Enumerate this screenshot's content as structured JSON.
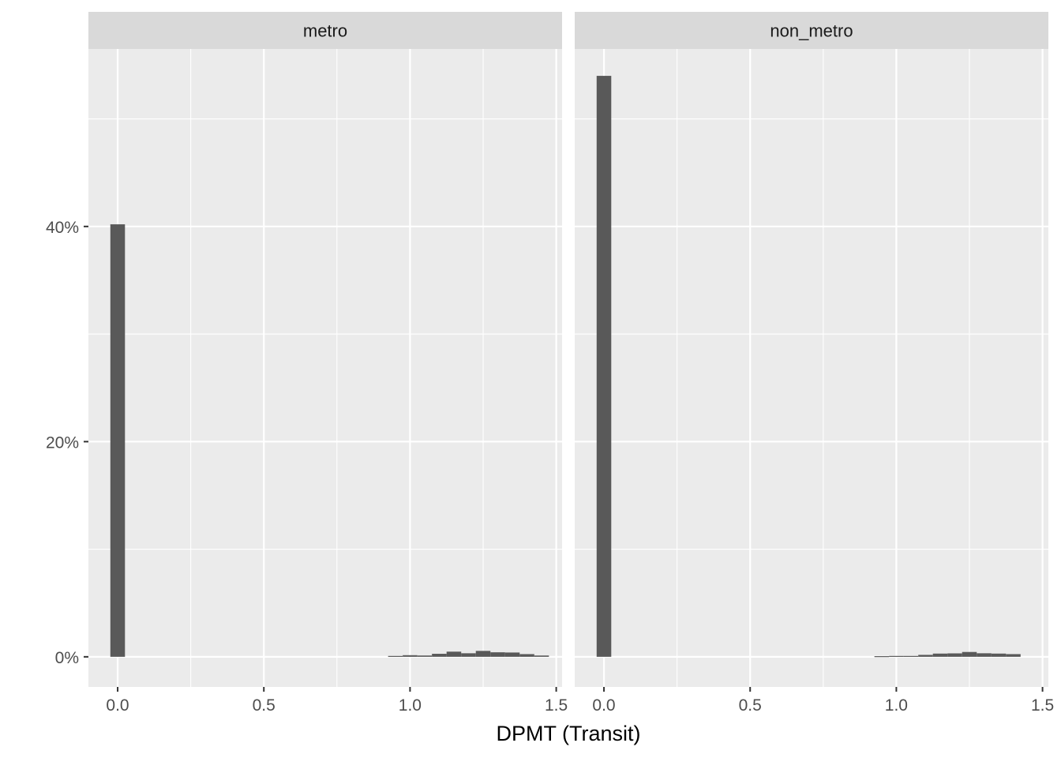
{
  "chart_data": {
    "type": "bar",
    "subtype": "faceted-histogram",
    "xlabel": "DPMT (Transit)",
    "ylabel": "",
    "xlim": [
      -0.1,
      1.52
    ],
    "ylim": [
      -0.028,
      0.565
    ],
    "x_ticks": [
      0.0,
      0.5,
      1.0,
      1.5
    ],
    "x_tick_labels": [
      "0.0",
      "0.5",
      "1.0",
      "1.5"
    ],
    "y_ticks": [
      0.0,
      0.2,
      0.4
    ],
    "y_tick_labels": [
      "0%",
      "20%",
      "40%"
    ],
    "y_format": "percent",
    "bin_width": 0.05,
    "grid": true,
    "colors": {
      "bar": "#595959",
      "panel_bg": "#ebebeb",
      "strip_bg": "#d9d9d9",
      "grid": "#ffffff"
    },
    "facets": [
      {
        "label": "metro",
        "bins": [
          {
            "x": 0.0,
            "value": 0.402
          },
          {
            "x": 0.95,
            "value": 0.0008
          },
          {
            "x": 1.0,
            "value": 0.0015
          },
          {
            "x": 1.05,
            "value": 0.0012
          },
          {
            "x": 1.1,
            "value": 0.0028
          },
          {
            "x": 1.15,
            "value": 0.0048
          },
          {
            "x": 1.2,
            "value": 0.0033
          },
          {
            "x": 1.25,
            "value": 0.0055
          },
          {
            "x": 1.3,
            "value": 0.0042
          },
          {
            "x": 1.35,
            "value": 0.004
          },
          {
            "x": 1.4,
            "value": 0.0025
          },
          {
            "x": 1.45,
            "value": 0.0012
          }
        ]
      },
      {
        "label": "non_metro",
        "bins": [
          {
            "x": 0.0,
            "value": 0.54
          },
          {
            "x": 0.95,
            "value": 0.0006
          },
          {
            "x": 1.0,
            "value": 0.0008
          },
          {
            "x": 1.05,
            "value": 0.0008
          },
          {
            "x": 1.1,
            "value": 0.0018
          },
          {
            "x": 1.15,
            "value": 0.003
          },
          {
            "x": 1.2,
            "value": 0.0032
          },
          {
            "x": 1.25,
            "value": 0.0045
          },
          {
            "x": 1.3,
            "value": 0.0033
          },
          {
            "x": 1.35,
            "value": 0.003
          },
          {
            "x": 1.4,
            "value": 0.0025
          }
        ]
      }
    ]
  }
}
